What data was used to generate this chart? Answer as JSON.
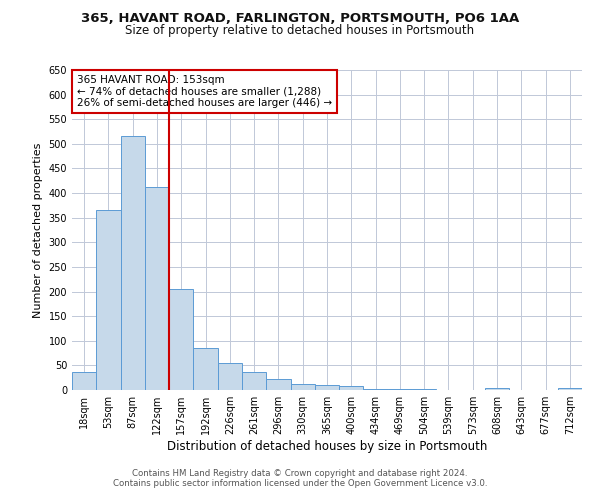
{
  "title1": "365, HAVANT ROAD, FARLINGTON, PORTSMOUTH, PO6 1AA",
  "title2": "Size of property relative to detached houses in Portsmouth",
  "xlabel": "Distribution of detached houses by size in Portsmouth",
  "ylabel": "Number of detached properties",
  "bar_labels": [
    "18sqm",
    "53sqm",
    "87sqm",
    "122sqm",
    "157sqm",
    "192sqm",
    "226sqm",
    "261sqm",
    "296sqm",
    "330sqm",
    "365sqm",
    "400sqm",
    "434sqm",
    "469sqm",
    "504sqm",
    "539sqm",
    "573sqm",
    "608sqm",
    "643sqm",
    "677sqm",
    "712sqm"
  ],
  "bar_values": [
    37,
    365,
    515,
    413,
    205,
    85,
    55,
    37,
    23,
    12,
    10,
    8,
    3,
    3,
    2,
    1,
    0,
    5,
    0,
    0,
    5
  ],
  "bar_color": "#c6d9ea",
  "bar_edge_color": "#5b9bd5",
  "vline_x_idx": 3.5,
  "vline_color": "#cc0000",
  "annotation_title": "365 HAVANT ROAD: 153sqm",
  "annotation_line1": "← 74% of detached houses are smaller (1,288)",
  "annotation_line2": "26% of semi-detached houses are larger (446) →",
  "annotation_box_color": "#cc0000",
  "footer1": "Contains HM Land Registry data © Crown copyright and database right 2024.",
  "footer2": "Contains public sector information licensed under the Open Government Licence v3.0.",
  "ylim": [
    0,
    650
  ],
  "yticks": [
    0,
    50,
    100,
    150,
    200,
    250,
    300,
    350,
    400,
    450,
    500,
    550,
    600,
    650
  ],
  "bg_color": "#ffffff",
  "grid_color": "#c0c8d8",
  "title1_fontsize": 9.5,
  "title2_fontsize": 8.5,
  "xlabel_fontsize": 8.5,
  "ylabel_fontsize": 8,
  "tick_fontsize": 7,
  "annotation_fontsize": 7.5,
  "footer_fontsize": 6.2
}
